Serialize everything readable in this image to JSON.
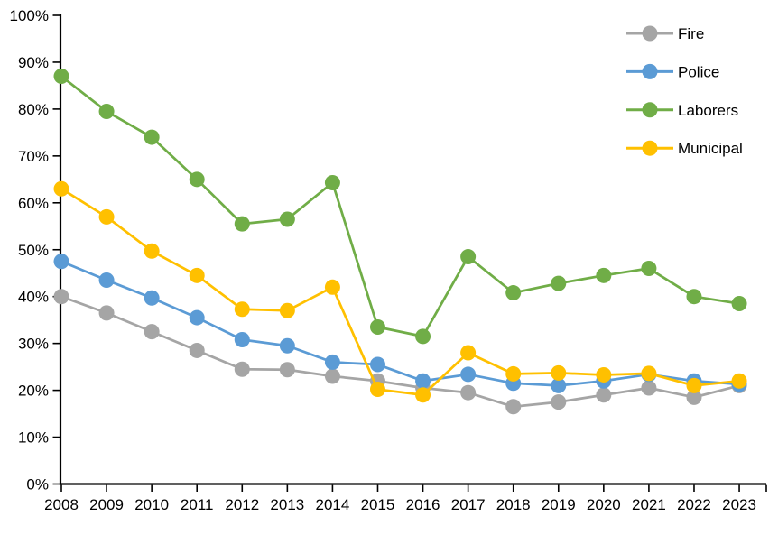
{
  "chart_data": {
    "type": "line",
    "title": "",
    "xlabel": "",
    "ylabel": "",
    "categories": [
      "2008",
      "2009",
      "2010",
      "2011",
      "2012",
      "2013",
      "2014",
      "2015",
      "2016",
      "2017",
      "2018",
      "2019",
      "2020",
      "2021",
      "2022",
      "2023"
    ],
    "y_axis": {
      "min": 0,
      "max": 100,
      "step": 10,
      "tick_suffix": "%",
      "tick_labels": [
        "0%",
        "10%",
        "20%",
        "30%",
        "40%",
        "50%",
        "60%",
        "70%",
        "80%",
        "90%",
        "100%"
      ]
    },
    "grid": false,
    "legend_position": "top-right",
    "series": [
      {
        "name": "Fire",
        "color": "#A5A5A5",
        "values": [
          40,
          36.5,
          32.5,
          28.5,
          24.5,
          24.4,
          23,
          22,
          20.5,
          19.5,
          16.5,
          17.5,
          19,
          20.5,
          18.5,
          21
        ]
      },
      {
        "name": "Police",
        "color": "#5B9BD5",
        "values": [
          47.5,
          43.5,
          39.7,
          35.5,
          30.8,
          29.5,
          26,
          25.5,
          22,
          23.4,
          21.5,
          21,
          22,
          23.4,
          22,
          21.3
        ]
      },
      {
        "name": "Laborers",
        "color": "#70AD47",
        "values": [
          87,
          79.5,
          74,
          65,
          55.5,
          56.5,
          64.3,
          33.5,
          31.5,
          48.5,
          40.8,
          42.8,
          44.5,
          46,
          40,
          38.5
        ]
      },
      {
        "name": "Municipal",
        "color": "#FFC000",
        "values": [
          63,
          57,
          49.7,
          44.5,
          37.3,
          37,
          42,
          20.2,
          19,
          28,
          23.5,
          23.7,
          23.3,
          23.6,
          21,
          22
        ]
      }
    ],
    "axis_color": "#000000",
    "text_color": "#000000"
  }
}
